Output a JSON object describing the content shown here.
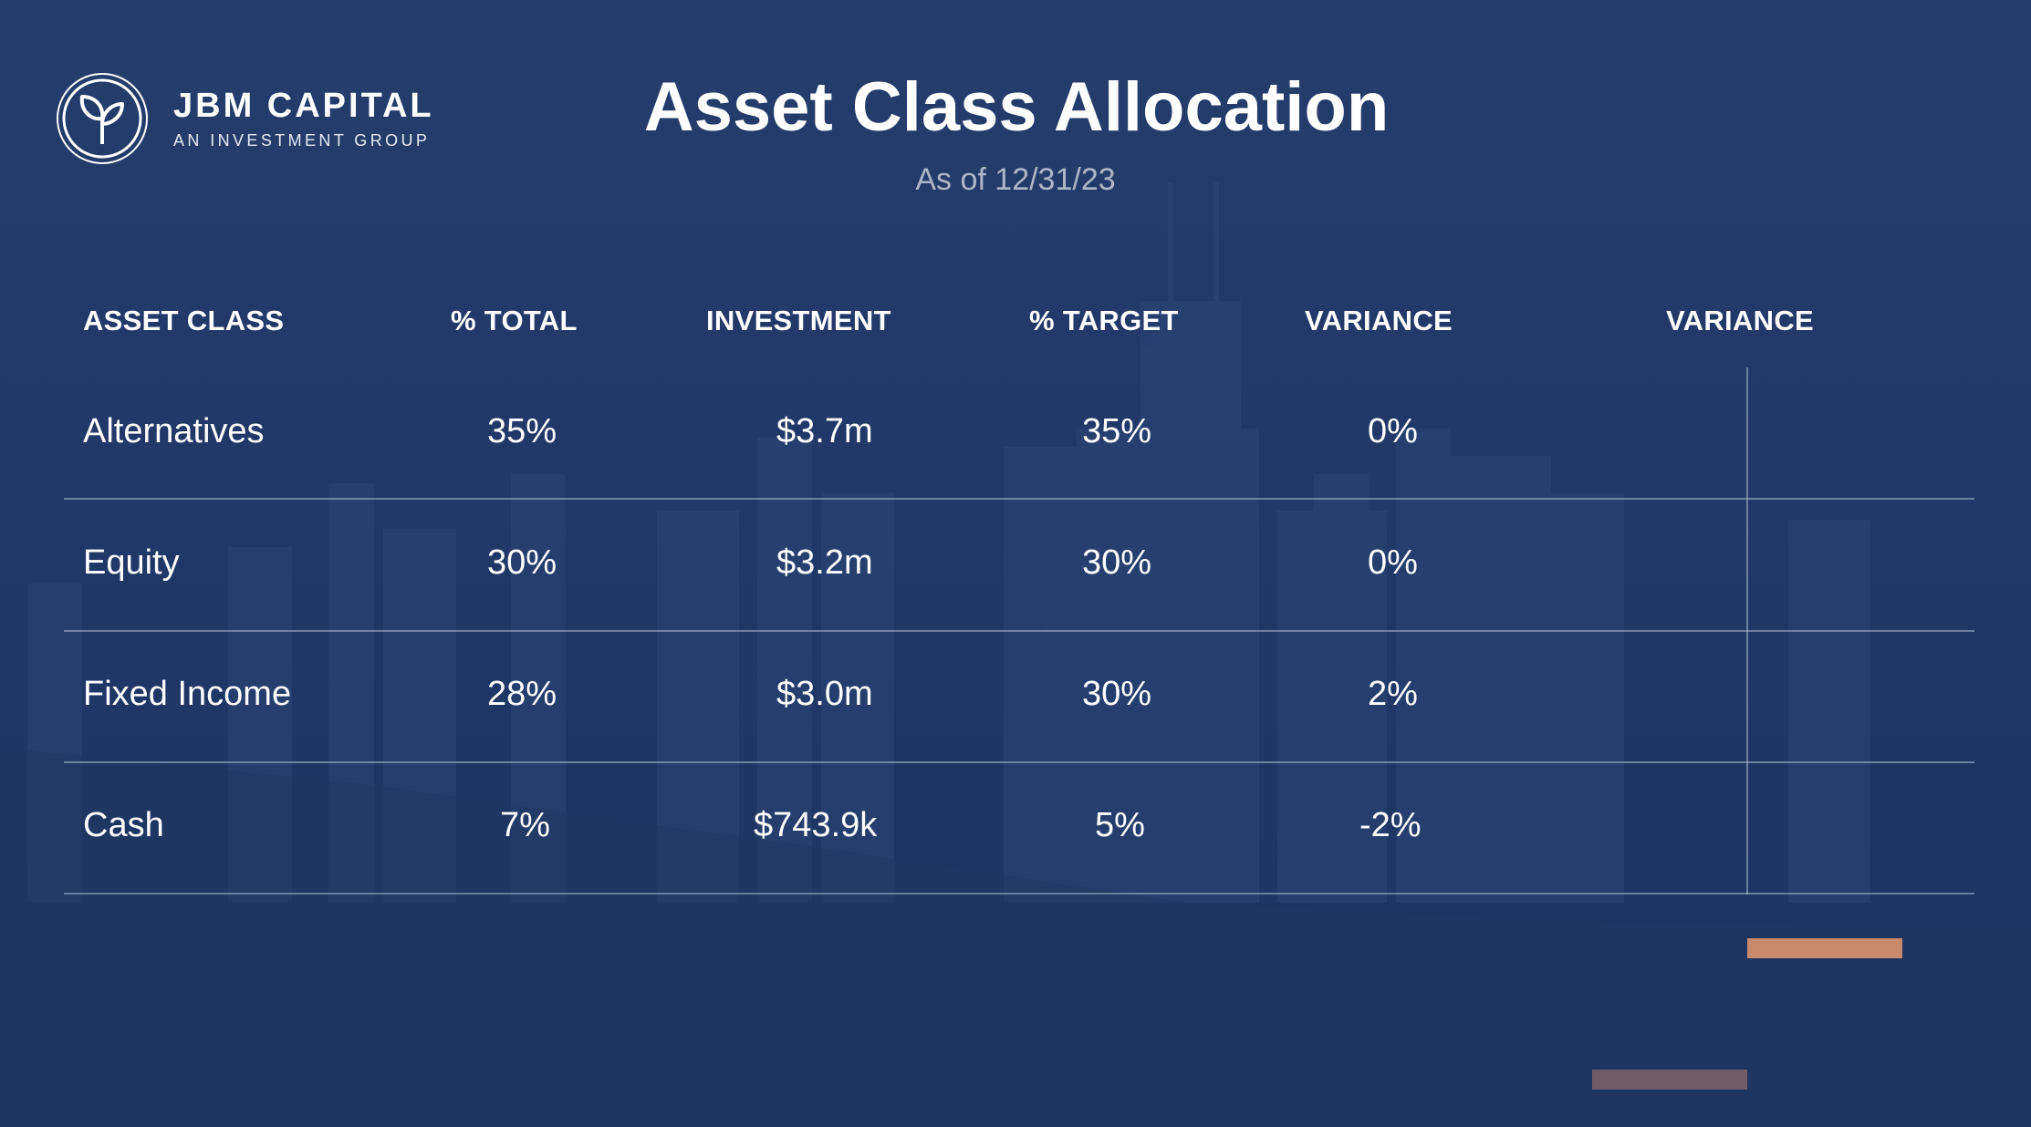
{
  "brand": {
    "name": "JBM CAPITAL",
    "tagline": "AN INVESTMENT GROUP"
  },
  "title": "Asset Class Allocation",
  "subtitle": "As of 12/31/23",
  "columns": [
    "ASSET CLASS",
    "% TOTAL",
    "INVESTMENT",
    "% TARGET",
    "VARIANCE",
    "VARIANCE"
  ],
  "rows": [
    {
      "asset_class": "Alternatives",
      "pct_total": "35%",
      "investment": "$3.7m",
      "pct_target": "35%",
      "variance": "0%"
    },
    {
      "asset_class": "Equity",
      "pct_total": "30%",
      "investment": "$3.2m",
      "pct_target": "30%",
      "variance": "0%"
    },
    {
      "asset_class": "Fixed Income",
      "pct_total": "28%",
      "investment": "$3.0m",
      "pct_target": "30%",
      "variance": "2%"
    },
    {
      "asset_class": "Cash",
      "pct_total": "7%",
      "investment": "$743.9k",
      "pct_target": "5%",
      "variance": "-2%"
    }
  ],
  "chart_data": {
    "type": "bar",
    "orientation": "horizontal",
    "categories": [
      "Alternatives",
      "Equity",
      "Fixed Income",
      "Cash"
    ],
    "values": [
      0,
      0,
      2,
      -2
    ],
    "xlim": [
      -3,
      3
    ],
    "colors": {
      "positive": "#c98a6b",
      "negative": "#6f5c66"
    }
  },
  "colors": {
    "background": "#21396a",
    "text": "#ffffff",
    "subtitle": "#aeb7c8",
    "gridline": "#cdd7e8"
  }
}
